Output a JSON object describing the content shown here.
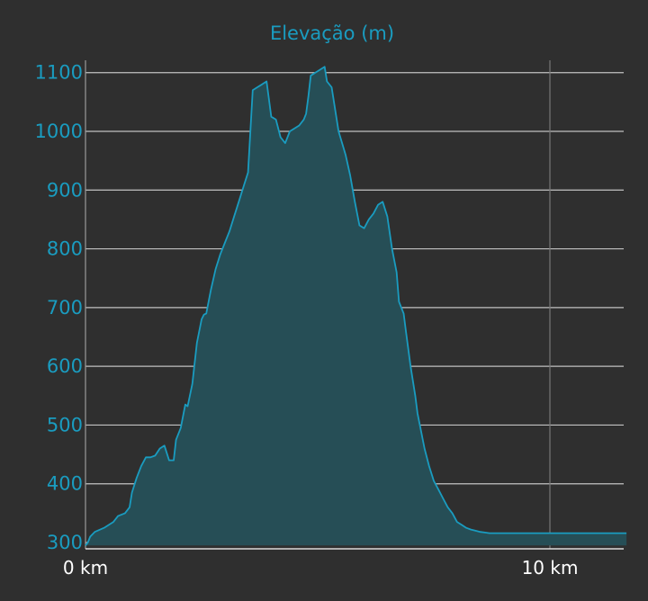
{
  "chart_data": {
    "type": "area",
    "title": "Elevação (m)",
    "xlabel": "",
    "ylabel": "",
    "x_unit": "km",
    "xlim": [
      0,
      11.65
    ],
    "ylim": [
      295,
      1110
    ],
    "y_ticks": [
      300,
      400,
      500,
      600,
      700,
      800,
      900,
      1000,
      1100
    ],
    "y_tick_labels": [
      "300",
      "400",
      "500",
      "600",
      "700",
      "800",
      "900",
      "1000",
      "1100"
    ],
    "x_ticks": [
      0,
      10
    ],
    "x_tick_labels": [
      "0 km",
      "10 km"
    ],
    "grid": true,
    "colors": {
      "line": "#1a9cc0",
      "fill": "#264e56",
      "grid": "#dcdcdc",
      "background": "#2f2f2f",
      "tick_text": "#1a9cc0",
      "x_tick_text": "#ffffff"
    },
    "series": [
      {
        "x": [
          0,
          0.05,
          0.1,
          0.2,
          0.4,
          0.6,
          0.7,
          0.85,
          0.95,
          1.0,
          1.1,
          1.2,
          1.3,
          1.4,
          1.5,
          1.6,
          1.7,
          1.8,
          1.9,
          1.95,
          2.05,
          2.15,
          2.2,
          2.3,
          2.4,
          2.5,
          2.55,
          2.6,
          2.7,
          2.8,
          2.9,
          3.0,
          3.1,
          3.2,
          3.3,
          3.4,
          3.5,
          3.6,
          3.7,
          3.8,
          3.9,
          4.0,
          4.1,
          4.2,
          4.3,
          4.4,
          4.5,
          4.6,
          4.7,
          4.75,
          4.8,
          4.85,
          5.15,
          5.2,
          5.3,
          5.45,
          5.6,
          5.7,
          5.8,
          5.9,
          6.0,
          6.1,
          6.2,
          6.3,
          6.4,
          6.5,
          6.6,
          6.7,
          6.75,
          6.8,
          6.85,
          6.9,
          7.0,
          7.1,
          7.15,
          7.2,
          7.3,
          7.4,
          7.5,
          7.6,
          7.7,
          7.8,
          7.9,
          8.0,
          8.1,
          8.2,
          8.3,
          8.4,
          8.5,
          8.6,
          8.7,
          8.8,
          8.9,
          9.0,
          9.1,
          9.2,
          9.3,
          9.4,
          9.5,
          9.6,
          9.7,
          9.8,
          9.9,
          10.0,
          10.1,
          10.2,
          10.3,
          10.4,
          10.5,
          10.6,
          10.7,
          10.8,
          10.9,
          11.0,
          11.2,
          11.4,
          11.65
        ],
        "y": [
          295,
          300,
          310,
          318,
          325,
          335,
          345,
          350,
          360,
          385,
          410,
          430,
          445,
          445,
          448,
          460,
          465,
          440,
          440,
          475,
          495,
          535,
          532,
          570,
          640,
          680,
          688,
          690,
          730,
          765,
          790,
          810,
          830,
          855,
          880,
          905,
          930,
          1070,
          1075,
          1080,
          1085,
          1025,
          1020,
          990,
          980,
          1000,
          1005,
          1010,
          1020,
          1030,
          1060,
          1095,
          1110,
          1085,
          1075,
          1000,
          960,
          925,
          880,
          840,
          835,
          850,
          860,
          875,
          880,
          855,
          800,
          760,
          710,
          700,
          690,
          660,
          600,
          550,
          520,
          500,
          460,
          430,
          405,
          390,
          375,
          360,
          350,
          335,
          330,
          325,
          322,
          320,
          318,
          317,
          316,
          316,
          316,
          316,
          316,
          316,
          316,
          316,
          316,
          316,
          316,
          316,
          316,
          316,
          316,
          316,
          316,
          316,
          316,
          316,
          316,
          316,
          316,
          316,
          316,
          316,
          316
        ]
      }
    ]
  }
}
